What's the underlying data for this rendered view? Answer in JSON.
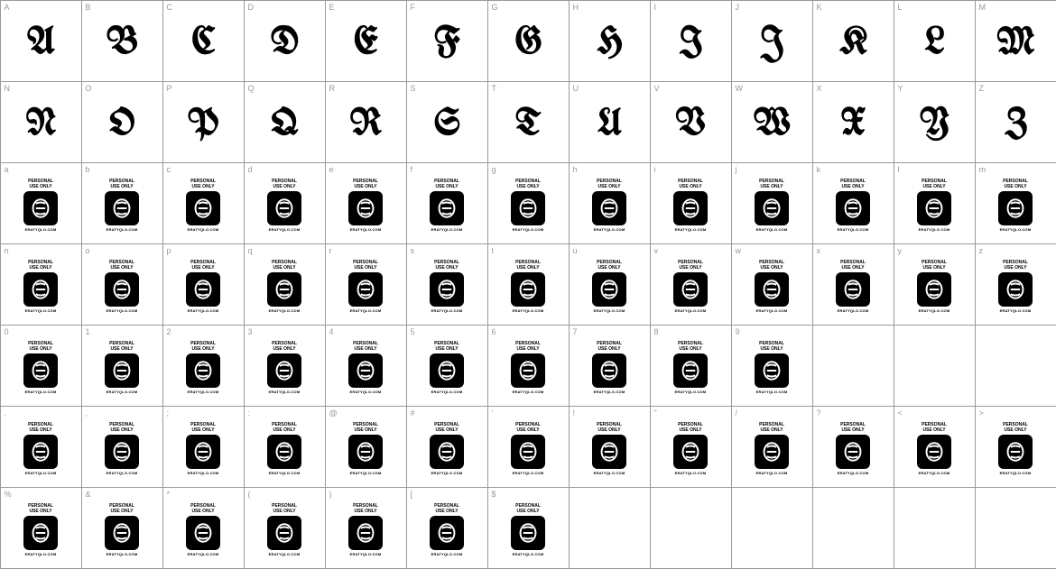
{
  "placeholder": {
    "line1": "PERSONAL",
    "line2": "USE ONLY",
    "url": "ERATYQLO.COM"
  },
  "rows": [
    {
      "labels": [
        "A",
        "B",
        "C",
        "D",
        "E",
        "F",
        "G",
        "H",
        "I",
        "J",
        "K",
        "L",
        "M"
      ],
      "type": "glyph",
      "glyphs": [
        "A",
        "B",
        "C",
        "D",
        "E",
        "F",
        "G",
        "H",
        "I",
        "J",
        "K",
        "L",
        "M"
      ]
    },
    {
      "labels": [
        "N",
        "O",
        "P",
        "Q",
        "R",
        "S",
        "T",
        "U",
        "V",
        "W",
        "X",
        "Y",
        "Z"
      ],
      "type": "glyph",
      "glyphs": [
        "N",
        "O",
        "P",
        "Q",
        "R",
        "S",
        "T",
        "U",
        "V",
        "W",
        "X",
        "Y",
        "Z"
      ]
    },
    {
      "labels": [
        "a",
        "b",
        "c",
        "d",
        "e",
        "f",
        "g",
        "h",
        "i",
        "j",
        "k",
        "l",
        "m"
      ],
      "type": "placeholder"
    },
    {
      "labels": [
        "n",
        "o",
        "p",
        "q",
        "r",
        "s",
        "t",
        "u",
        "v",
        "w",
        "x",
        "y",
        "z"
      ],
      "type": "placeholder"
    },
    {
      "labels": [
        "0",
        "1",
        "2",
        "3",
        "4",
        "5",
        "6",
        "7",
        "8",
        "9",
        "",
        "",
        ""
      ],
      "type": "placeholder"
    },
    {
      "labels": [
        ".",
        ",",
        ";",
        ":",
        "@",
        "#",
        "'",
        "!",
        "\"",
        "/",
        "?",
        "<",
        ">"
      ],
      "type": "placeholder"
    },
    {
      "labels": [
        "%",
        "&",
        "*",
        "(",
        ")",
        "[",
        "$",
        "",
        "",
        "",
        "",
        "",
        ""
      ],
      "type": "placeholder"
    }
  ],
  "cell_border": "#999999",
  "label_color": "#999999",
  "background": "#ffffff",
  "glyph_color": "#000000",
  "grid_cols": 13,
  "cell_size": 90
}
